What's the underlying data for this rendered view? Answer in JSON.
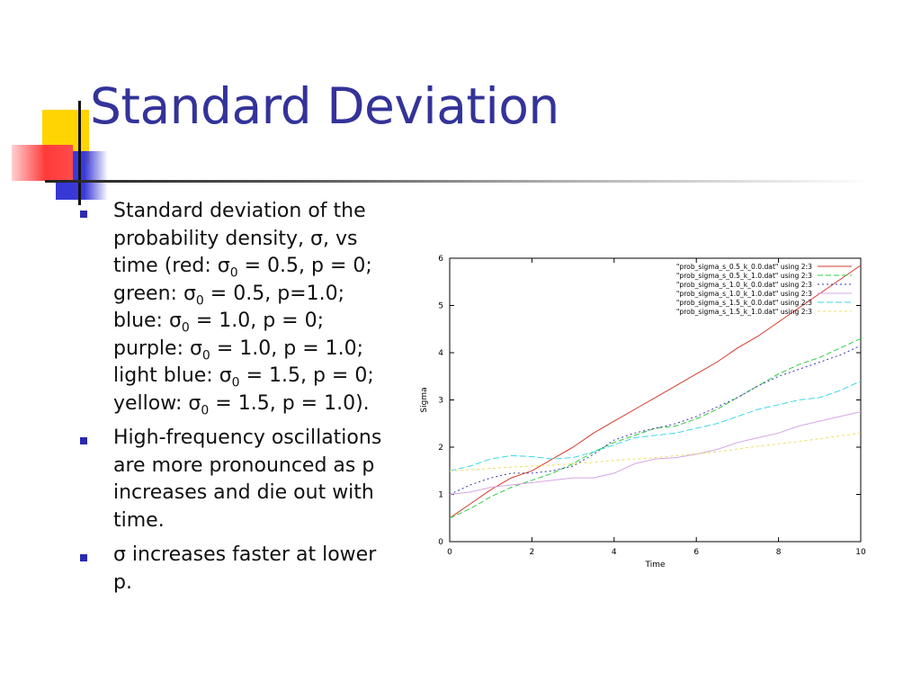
{
  "slide": {
    "title": "Standard Deviation",
    "bullets": [
      [
        {
          "t": "Standard deviation of the probability density, σ, vs time (red: σ"
        },
        {
          "t": "0",
          "sub": true
        },
        {
          "t": " = 0.5, p = 0; green: σ"
        },
        {
          "t": "0",
          "sub": true
        },
        {
          "t": " = 0.5, p=1.0; blue: σ"
        },
        {
          "t": "0",
          "sub": true
        },
        {
          "t": " = 1.0, p = 0; purple: σ"
        },
        {
          "t": "0",
          "sub": true
        },
        {
          "t": " = 1.0, p = 1.0; light blue: σ"
        },
        {
          "t": "0",
          "sub": true
        },
        {
          "t": "  = 1.5, p = 0; yellow: σ"
        },
        {
          "t": "0",
          "sub": true
        },
        {
          "t": " = 1.5, p = 1.0)."
        }
      ],
      [
        {
          "t": "High-frequency oscillations are more pronounced as p increases and die out with time."
        }
      ],
      [
        {
          "t": "σ increases faster at lower p."
        }
      ]
    ],
    "colors": {
      "title": "#333399",
      "bullet": "#2a2ab0"
    }
  },
  "chart_data": {
    "type": "line",
    "xlabel": "Time",
    "ylabel": "Sigma",
    "xlim": [
      0,
      10
    ],
    "ylim": [
      0,
      6
    ],
    "xticks": [
      0,
      2,
      4,
      6,
      8,
      10
    ],
    "yticks": [
      0,
      1,
      2,
      3,
      4,
      5,
      6
    ],
    "grid": false,
    "legend_position": "top-right",
    "x": [
      0,
      0.5,
      1,
      1.5,
      2,
      2.5,
      3,
      3.5,
      4,
      4.5,
      5,
      5.5,
      6,
      6.5,
      7,
      7.5,
      8,
      8.5,
      9,
      9.5,
      10
    ],
    "series": [
      {
        "name": "\"prob_sigma_s_0.5_k_0.0.dat\" using 2:3",
        "color": "#d43a2a",
        "dash": "solid",
        "values": [
          0.5,
          0.8,
          1.1,
          1.35,
          1.5,
          1.75,
          2.0,
          2.3,
          2.55,
          2.8,
          3.05,
          3.3,
          3.55,
          3.8,
          4.1,
          4.35,
          4.65,
          4.95,
          5.25,
          5.55,
          5.85
        ]
      },
      {
        "name": "\"prob_sigma_s_0.5_k_1.0.dat\" using 2:3",
        "color": "#2ecc40",
        "dash": "6,3",
        "values": [
          0.5,
          0.7,
          0.95,
          1.15,
          1.3,
          1.45,
          1.65,
          1.9,
          2.1,
          2.25,
          2.4,
          2.45,
          2.6,
          2.8,
          3.05,
          3.3,
          3.55,
          3.75,
          3.9,
          4.1,
          4.3
        ]
      },
      {
        "name": "\"prob_sigma_s_1.0_k_0.0.dat\" using 2:3",
        "color": "#3a3aa8",
        "dash": "2,3",
        "values": [
          1.0,
          1.2,
          1.35,
          1.45,
          1.45,
          1.5,
          1.6,
          1.85,
          2.15,
          2.3,
          2.4,
          2.5,
          2.65,
          2.85,
          3.05,
          3.3,
          3.5,
          3.65,
          3.8,
          3.95,
          4.15
        ]
      },
      {
        "name": "\"prob_sigma_s_1.0_k_1.0.dat\" using 2:3",
        "color": "#d8a4e4",
        "dash": "solid",
        "values": [
          1.0,
          1.05,
          1.15,
          1.2,
          1.25,
          1.3,
          1.35,
          1.35,
          1.45,
          1.65,
          1.75,
          1.78,
          1.85,
          1.95,
          2.1,
          2.2,
          2.3,
          2.45,
          2.55,
          2.65,
          2.75
        ]
      },
      {
        "name": "\"prob_sigma_s_1.5_k_0.0.dat\" using 2:3",
        "color": "#3ad8e8",
        "dash": "7,3",
        "values": [
          1.5,
          1.6,
          1.75,
          1.82,
          1.8,
          1.75,
          1.78,
          1.9,
          2.05,
          2.2,
          2.25,
          2.3,
          2.4,
          2.5,
          2.65,
          2.8,
          2.9,
          3.0,
          3.05,
          3.2,
          3.4
        ]
      },
      {
        "name": "\"prob_sigma_s_1.5_k_1.0.dat\" using 2:3",
        "color": "#e8e060",
        "dash": "3,3",
        "values": [
          1.5,
          1.52,
          1.55,
          1.58,
          1.6,
          1.62,
          1.65,
          1.68,
          1.72,
          1.75,
          1.78,
          1.82,
          1.86,
          1.9,
          1.96,
          2.02,
          2.07,
          2.12,
          2.18,
          2.24,
          2.3
        ]
      }
    ]
  }
}
